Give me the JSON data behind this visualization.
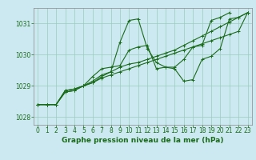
{
  "background_color": "#cce8f0",
  "grid_color": "#99ccbb",
  "line_color": "#1a6b1a",
  "xlabel": "Graphe pression niveau de la mer (hPa)",
  "xlim": [
    -0.5,
    23.5
  ],
  "ylim": [
    1027.75,
    1031.5
  ],
  "yticks": [
    1028,
    1029,
    1030,
    1031
  ],
  "xticks": [
    0,
    1,
    2,
    3,
    4,
    5,
    6,
    7,
    8,
    9,
    10,
    11,
    12,
    13,
    14,
    15,
    16,
    17,
    18,
    19,
    20,
    21,
    22,
    23
  ],
  "series": [
    [
      1028.4,
      1028.4,
      1028.4,
      1028.8,
      1028.85,
      1029.0,
      1029.15,
      1029.35,
      1029.45,
      1030.4,
      1031.1,
      1031.15,
      1030.2,
      1029.75,
      1029.6,
      1029.55,
      1029.15,
      1029.2,
      1029.85,
      1029.95,
      1030.2,
      1031.15,
      1031.2,
      1031.35
    ],
    [
      1028.4,
      1028.4,
      1028.4,
      1028.8,
      1028.85,
      1029.0,
      1029.3,
      1029.55,
      1029.6,
      1029.65,
      1030.15,
      1030.25,
      1030.3,
      1029.55,
      1029.6,
      1029.6,
      1029.85,
      1030.25,
      1030.3,
      1031.1,
      1031.2,
      1031.35,
      null,
      null
    ],
    [
      1028.4,
      1028.4,
      1028.4,
      1028.85,
      1028.9,
      1029.0,
      1029.1,
      1029.3,
      1029.45,
      1029.6,
      1029.7,
      1029.75,
      1029.85,
      1029.95,
      1030.05,
      1030.15,
      1030.3,
      1030.45,
      1030.6,
      1030.75,
      1030.9,
      1031.05,
      1031.2,
      1031.35
    ],
    [
      1028.4,
      1028.4,
      1028.4,
      1028.85,
      1028.9,
      1029.0,
      1029.1,
      1029.25,
      1029.35,
      1029.45,
      1029.55,
      1029.65,
      1029.75,
      1029.85,
      1029.95,
      1030.05,
      1030.15,
      1030.25,
      1030.35,
      1030.45,
      1030.55,
      1030.65,
      1030.75,
      1031.35
    ]
  ],
  "marker": "+",
  "marker_size": 2.5,
  "line_width": 0.8,
  "font_color": "#1a6b1a",
  "xlabel_fontsize": 6.5,
  "tick_fontsize": 5.5
}
